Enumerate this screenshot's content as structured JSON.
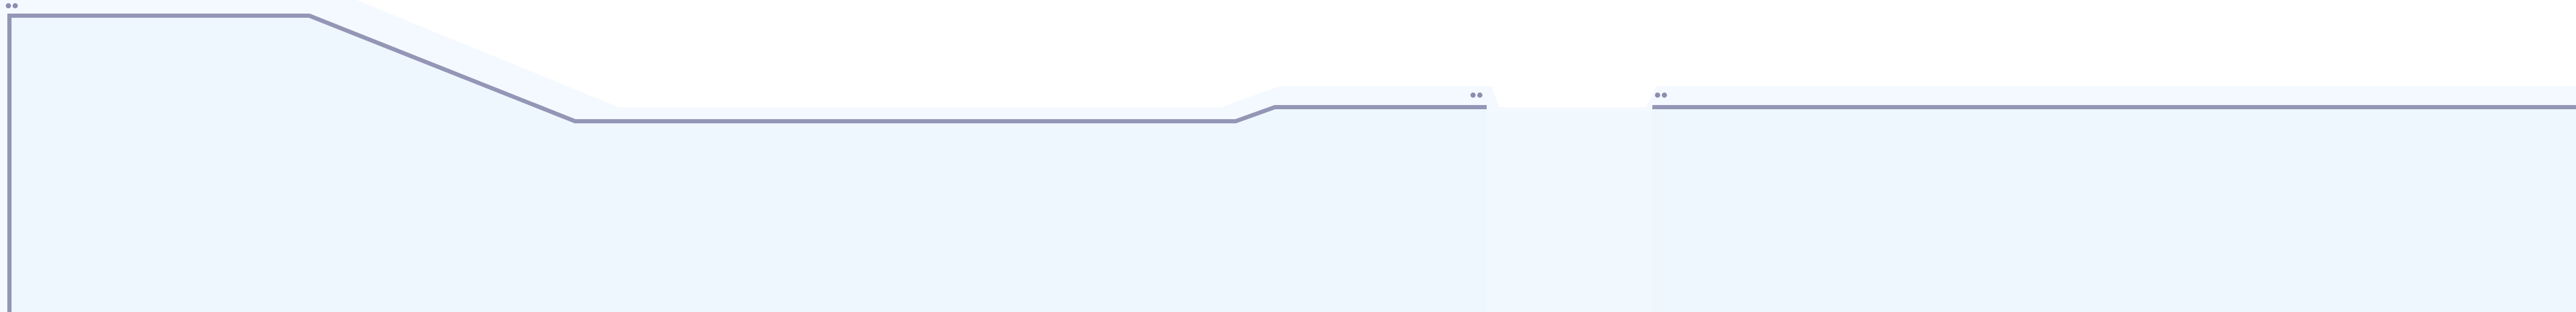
{
  "diagram": {
    "colors": {
      "background": "#ffffff",
      "fill": "#eef7fe",
      "fill_light": "#f4f9fe",
      "stroke": "#9496b6",
      "handle": "#8c8eb0"
    },
    "segments": [
      {
        "name": "left-segment",
        "handle_icon": "handle-dots-icon"
      },
      {
        "name": "right-segment",
        "handle_icon": "handle-dots-icon"
      }
    ]
  }
}
